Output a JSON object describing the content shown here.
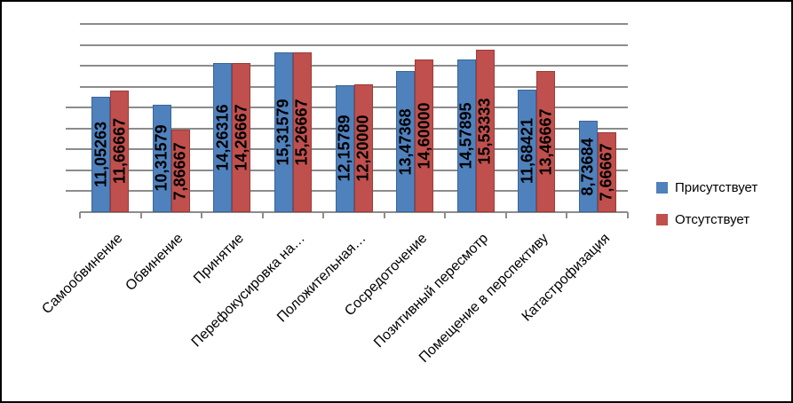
{
  "chart_data": {
    "type": "bar",
    "title": "",
    "categories": [
      "Самообвинение",
      "Обвинение",
      "Принятие",
      "Перефокусировка на…",
      "Положительная…",
      "Сосредоточение",
      "Позитивный пересмотр",
      "Помещение в перспективу",
      "Катастрофизация"
    ],
    "series": [
      {
        "name": "Присутствует",
        "color": "#4F81BD",
        "border_color": "#3A6696",
        "values": [
          11.05263,
          10.31579,
          14.26316,
          15.31579,
          12.15789,
          13.47368,
          14.57895,
          11.68421,
          8.73684
        ],
        "value_labels": [
          "11,05263",
          "10,31579",
          "14,26316",
          "15,31579",
          "12,15789",
          "13,47368",
          "14,57895",
          "11,68421",
          "8,73684"
        ]
      },
      {
        "name": "Отсутствует",
        "color": "#C0504D",
        "border_color": "#9C3B38",
        "values": [
          11.66667,
          7.86667,
          14.26667,
          15.26667,
          12.2,
          14.6,
          15.53333,
          13.46667,
          7.66667
        ],
        "value_labels": [
          "11,66667",
          "7,86667",
          "14,26667",
          "15,26667",
          "12,20000",
          "14,60000",
          "15,53333",
          "13,46667",
          "7,66667"
        ]
      }
    ],
    "ylim": [
      0,
      18
    ],
    "y_grid_step": 2,
    "grid": "on",
    "y_axis_tick_labels_visible": false,
    "legend_position": "right",
    "value_labels_position": "inside-center-vertical",
    "category_labels_rotation_deg": -45,
    "decimal_separator": ","
  },
  "styles": {
    "gridline_color": "#8C8C8C",
    "axis_color": "#8C8C8C",
    "text_color": "#000000",
    "background": "#FFFFFF",
    "frame_border_color": "#000000"
  }
}
